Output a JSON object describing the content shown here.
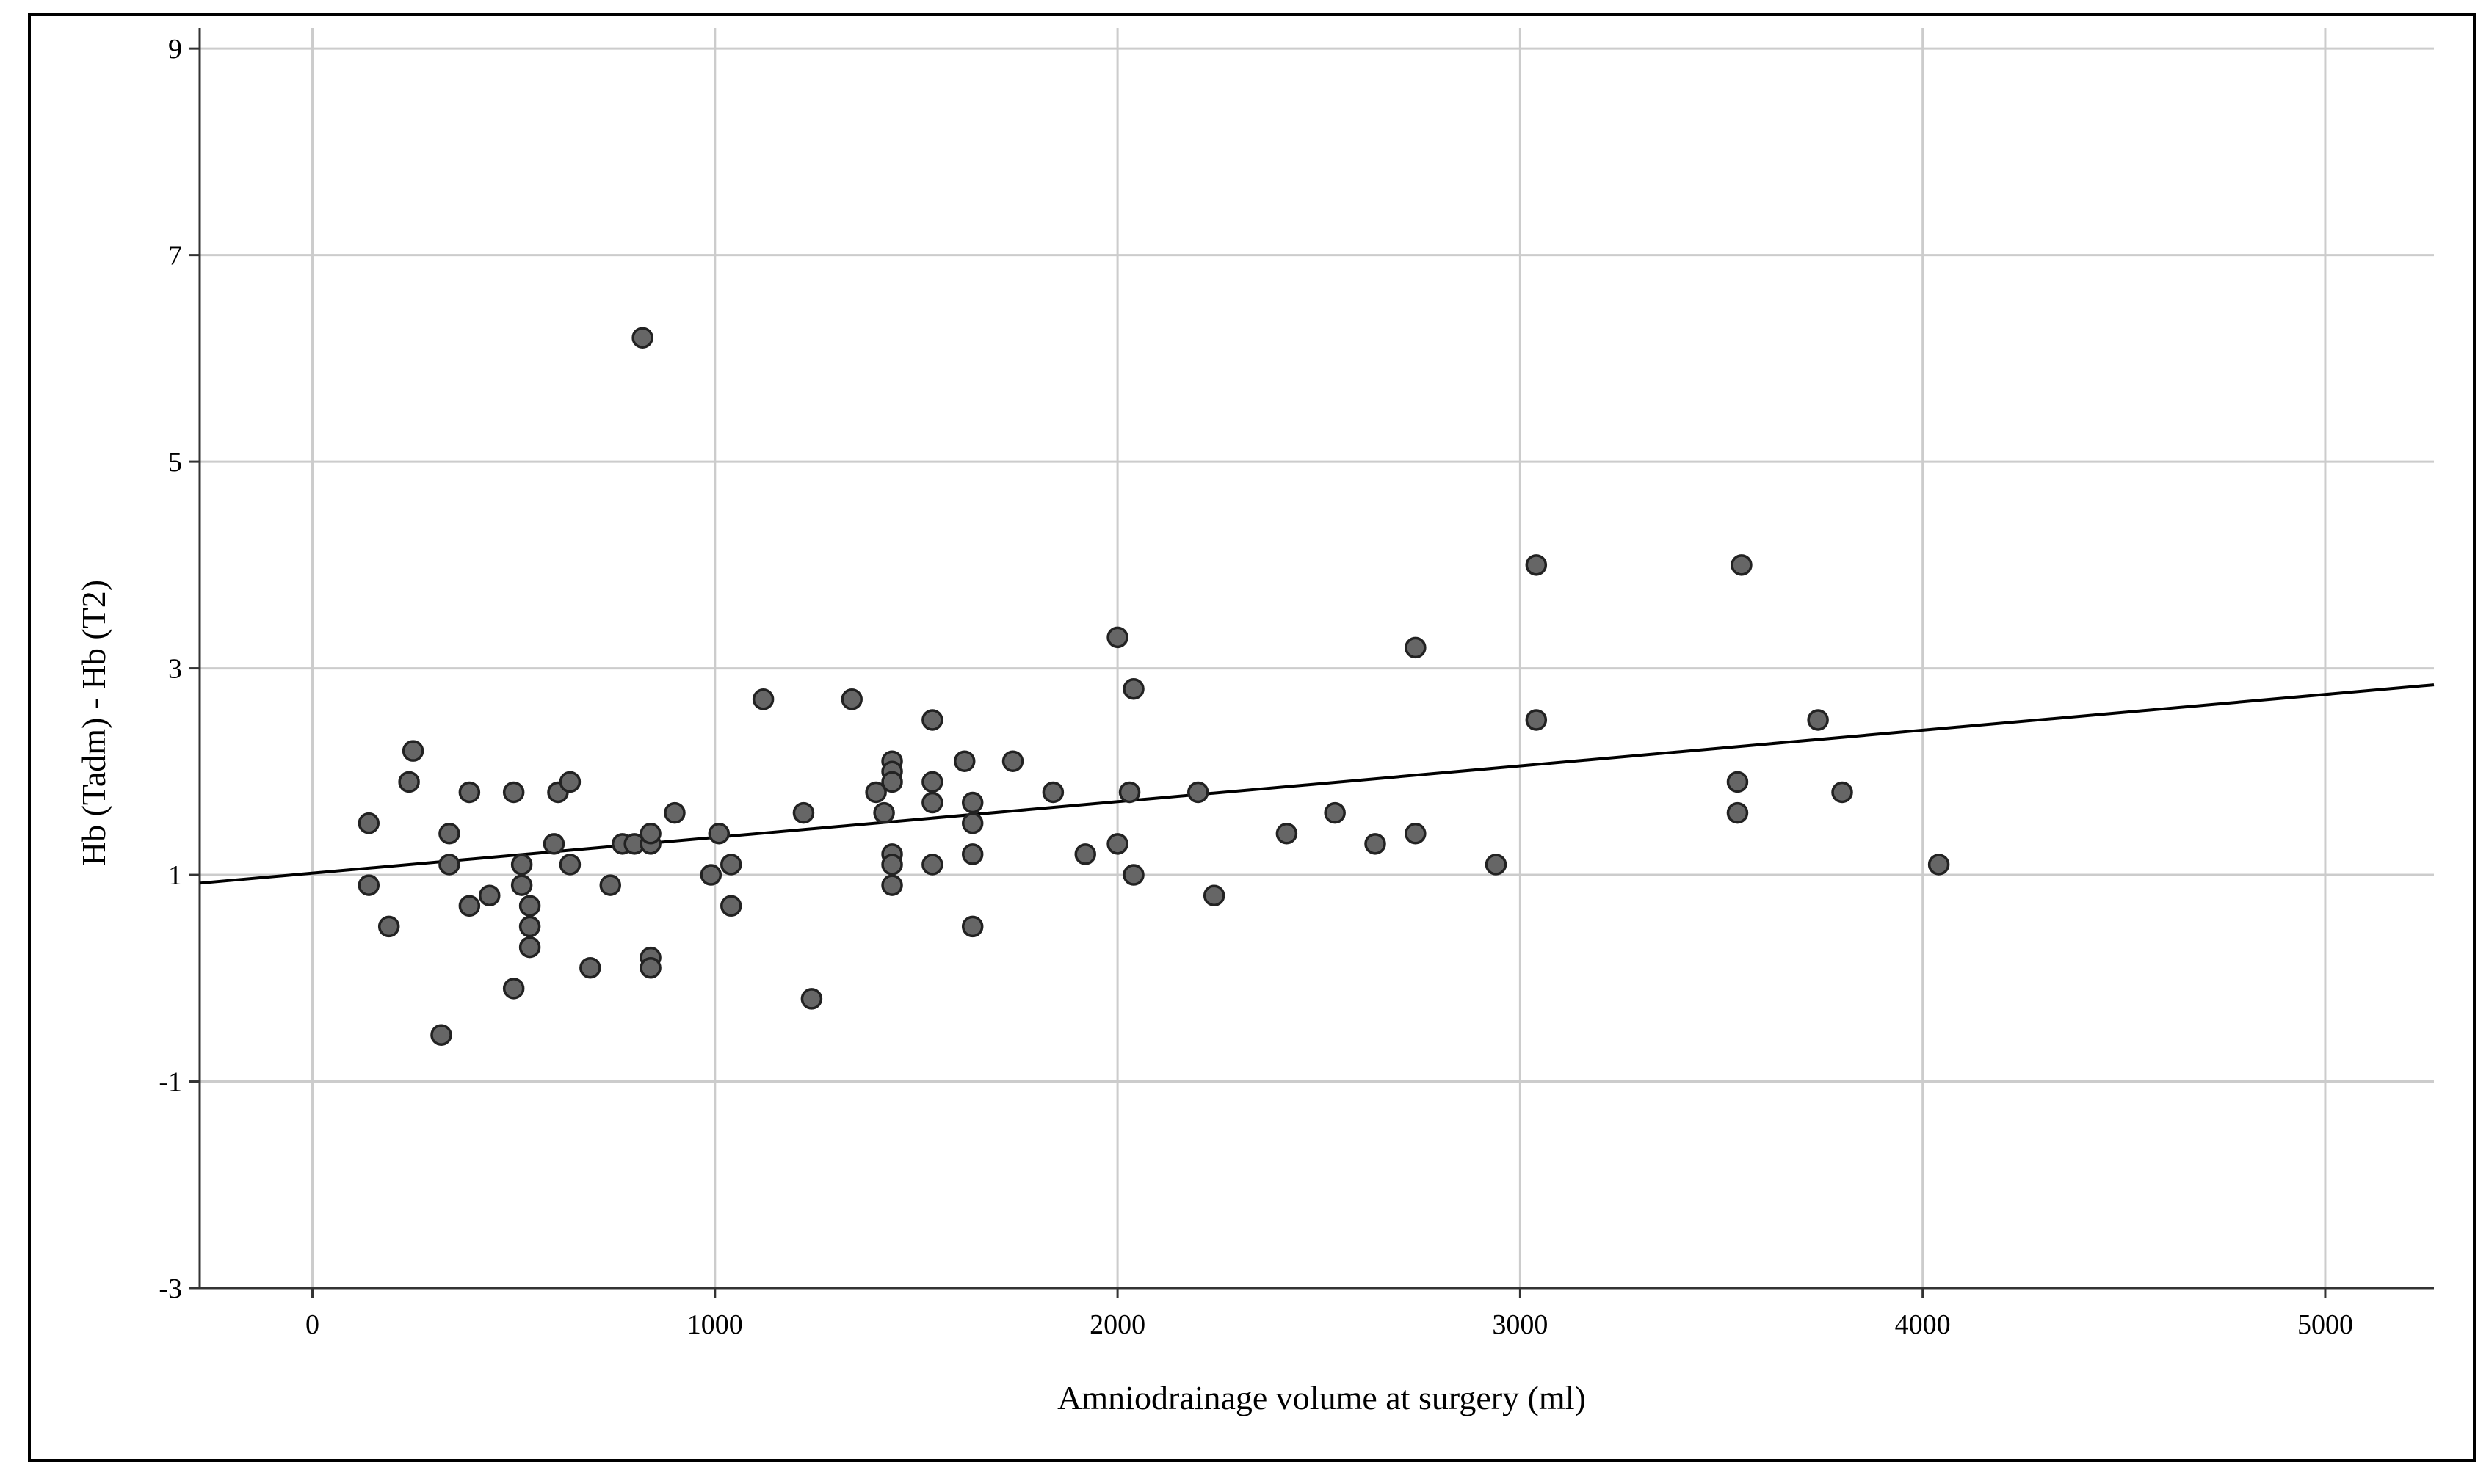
{
  "chart_data": {
    "type": "scatter",
    "title": "",
    "xlabel": "Amniodrainage volume at surgery (ml)",
    "ylabel": "Hb (Tadm) - Hb (T2)",
    "xlim": [
      -280,
      5270
    ],
    "ylim": [
      -3,
      9.2
    ],
    "x_ticks": [
      0,
      1000,
      2000,
      3000,
      4000,
      5000
    ],
    "y_ticks": [
      -3,
      -1,
      1,
      3,
      5,
      7,
      9
    ],
    "x_tick_labels": [
      "0",
      "1000",
      "2000",
      "3000",
      "4000",
      "5000"
    ],
    "y_tick_labels": [
      "-3",
      "-1",
      "1",
      "3",
      "5",
      "7",
      "9"
    ],
    "grid": true,
    "legend": "none",
    "colors": {
      "point_fill": "#666666",
      "point_stroke": "#222222",
      "grid": "#cccccc",
      "fit_line": "#000000",
      "frame": "#000000"
    },
    "fit_line": {
      "x": [
        -280,
        5270
      ],
      "y": [
        0.92,
        2.84
      ]
    },
    "series": [
      {
        "points": [
          [
            140,
            1.5
          ],
          [
            140,
            0.9
          ],
          [
            190,
            0.5
          ],
          [
            240,
            1.9
          ],
          [
            250,
            2.2
          ],
          [
            320,
            -0.55
          ],
          [
            340,
            1.4
          ],
          [
            340,
            1.1
          ],
          [
            390,
            1.8
          ],
          [
            390,
            0.7
          ],
          [
            440,
            0.8
          ],
          [
            500,
            1.8
          ],
          [
            500,
            -0.1
          ],
          [
            520,
            1.1
          ],
          [
            520,
            0.9
          ],
          [
            540,
            0.7
          ],
          [
            540,
            0.5
          ],
          [
            540,
            0.3
          ],
          [
            600,
            1.3
          ],
          [
            610,
            1.8
          ],
          [
            640,
            1.9
          ],
          [
            640,
            1.1
          ],
          [
            690,
            0.1
          ],
          [
            740,
            0.9
          ],
          [
            770,
            1.3
          ],
          [
            800,
            1.3
          ],
          [
            820,
            6.2
          ],
          [
            840,
            1.3
          ],
          [
            840,
            1.4
          ],
          [
            840,
            0.2
          ],
          [
            840,
            0.1
          ],
          [
            900,
            1.6
          ],
          [
            990,
            1.0
          ],
          [
            1010,
            1.4
          ],
          [
            1040,
            1.1
          ],
          [
            1040,
            0.7
          ],
          [
            1120,
            2.7
          ],
          [
            1220,
            1.6
          ],
          [
            1240,
            -0.2
          ],
          [
            1340,
            2.7
          ],
          [
            1400,
            1.8
          ],
          [
            1420,
            1.6
          ],
          [
            1440,
            2.1
          ],
          [
            1440,
            2.0
          ],
          [
            1440,
            1.9
          ],
          [
            1440,
            1.2
          ],
          [
            1440,
            1.1
          ],
          [
            1440,
            0.9
          ],
          [
            1540,
            2.5
          ],
          [
            1540,
            1.9
          ],
          [
            1540,
            1.7
          ],
          [
            1540,
            1.1
          ],
          [
            1620,
            2.1
          ],
          [
            1640,
            1.7
          ],
          [
            1640,
            1.5
          ],
          [
            1640,
            1.2
          ],
          [
            1640,
            0.5
          ],
          [
            1740,
            2.1
          ],
          [
            1840,
            1.8
          ],
          [
            1920,
            1.2
          ],
          [
            2000,
            3.3
          ],
          [
            2000,
            1.3
          ],
          [
            2030,
            1.8
          ],
          [
            2040,
            2.8
          ],
          [
            2040,
            1.0
          ],
          [
            2200,
            1.8
          ],
          [
            2240,
            0.8
          ],
          [
            2420,
            1.4
          ],
          [
            2540,
            1.6
          ],
          [
            2640,
            1.3
          ],
          [
            2740,
            3.2
          ],
          [
            2740,
            1.4
          ],
          [
            2940,
            1.1
          ],
          [
            3040,
            4.0
          ],
          [
            3040,
            2.5
          ],
          [
            3540,
            1.9
          ],
          [
            3540,
            1.6
          ],
          [
            3550,
            4.0
          ],
          [
            3740,
            2.5
          ],
          [
            3800,
            1.8
          ],
          [
            4040,
            1.1
          ]
        ]
      }
    ]
  }
}
